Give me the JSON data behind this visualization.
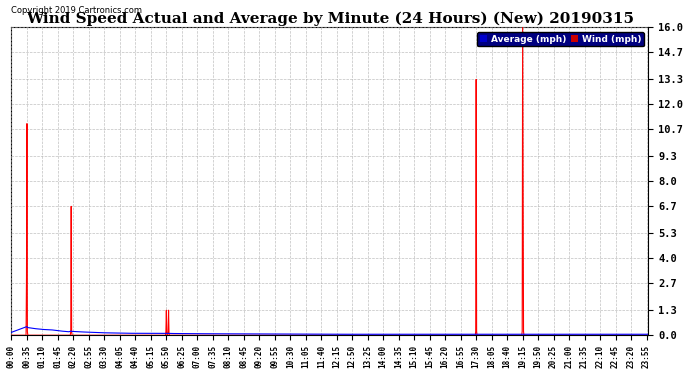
{
  "title": "Wind Speed Actual and Average by Minute (24 Hours) (New) 20190315",
  "copyright": "Copyright 2019 Cartronics.com",
  "yticks": [
    0.0,
    1.3,
    2.7,
    4.0,
    5.3,
    6.7,
    8.0,
    9.3,
    10.7,
    12.0,
    13.3,
    14.7,
    16.0
  ],
  "ymax": 16.0,
  "ymin": 0.0,
  "legend_labels": [
    "Average (mph)",
    "Wind (mph)"
  ],
  "legend_colors_bg": [
    "#0000cc",
    "#cc0000"
  ],
  "bg_color": "#ffffff",
  "grid_color": "#b0b0b0",
  "title_fontsize": 11,
  "total_minutes": 1440,
  "xtick_interval": 35,
  "wind_data": [
    [
      34,
      3.0
    ],
    [
      35,
      11.0
    ],
    [
      36,
      0.2
    ],
    [
      134,
      0.2
    ],
    [
      135,
      6.7
    ],
    [
      136,
      0.2
    ],
    [
      349,
      0.2
    ],
    [
      350,
      1.3
    ],
    [
      351,
      0.1
    ],
    [
      354,
      0.2
    ],
    [
      355,
      1.3
    ],
    [
      356,
      0.1
    ],
    [
      1049,
      0.2
    ],
    [
      1050,
      13.3
    ],
    [
      1051,
      0.2
    ],
    [
      1154,
      0.2
    ],
    [
      1155,
      16.0
    ],
    [
      1156,
      8.0
    ],
    [
      1157,
      0.2
    ]
  ],
  "avg_data": [
    [
      0,
      0.15
    ],
    [
      35,
      0.45
    ],
    [
      36,
      0.4
    ],
    [
      50,
      0.35
    ],
    [
      70,
      0.3
    ],
    [
      90,
      0.28
    ],
    [
      100,
      0.25
    ],
    [
      110,
      0.22
    ],
    [
      120,
      0.2
    ],
    [
      130,
      0.18
    ],
    [
      135,
      0.22
    ],
    [
      136,
      0.2
    ],
    [
      150,
      0.18
    ],
    [
      160,
      0.17
    ],
    [
      170,
      0.16
    ],
    [
      180,
      0.15
    ],
    [
      200,
      0.13
    ],
    [
      220,
      0.12
    ],
    [
      240,
      0.11
    ],
    [
      260,
      0.1
    ],
    [
      350,
      0.1
    ],
    [
      360,
      0.09
    ],
    [
      400,
      0.08
    ],
    [
      500,
      0.07
    ],
    [
      600,
      0.06
    ],
    [
      700,
      0.05
    ],
    [
      800,
      0.05
    ],
    [
      900,
      0.05
    ],
    [
      1000,
      0.05
    ],
    [
      1050,
      0.05
    ],
    [
      1100,
      0.05
    ],
    [
      1155,
      0.05
    ],
    [
      1200,
      0.05
    ],
    [
      1439,
      0.05
    ]
  ]
}
